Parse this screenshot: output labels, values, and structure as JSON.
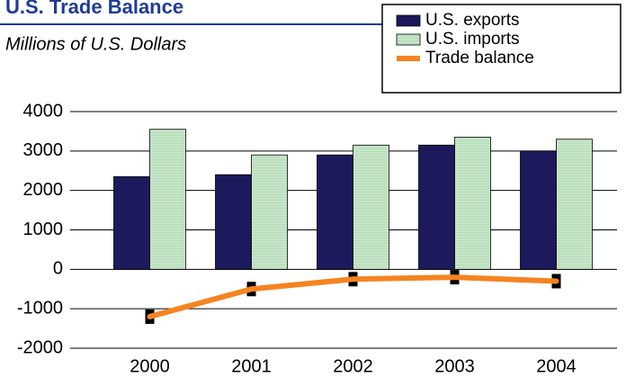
{
  "chart_data": {
    "type": "bar",
    "title": "U.S. Trade Balance",
    "subtitle": "Millions of U.S. Dollars",
    "categories": [
      "2000",
      "2001",
      "2002",
      "2003",
      "2004"
    ],
    "series": [
      {
        "name": "U.S. exports",
        "type": "bar",
        "color": "#1c1a5c",
        "values": [
          2350,
          2400,
          2900,
          3150,
          3000
        ]
      },
      {
        "name": "U.S. imports",
        "type": "bar",
        "color": "#c6e5c8",
        "values": [
          3550,
          2900,
          3150,
          3350,
          3300
        ]
      },
      {
        "name": "Trade balance",
        "type": "line",
        "color": "#f5841f",
        "values": [
          -1200,
          -500,
          -250,
          -200,
          -300
        ]
      }
    ],
    "ylim": [
      -2000,
      4000
    ],
    "yticks": [
      -2000,
      -1000,
      0,
      1000,
      2000,
      3000,
      4000
    ],
    "grid": true,
    "legend": "top-right"
  }
}
